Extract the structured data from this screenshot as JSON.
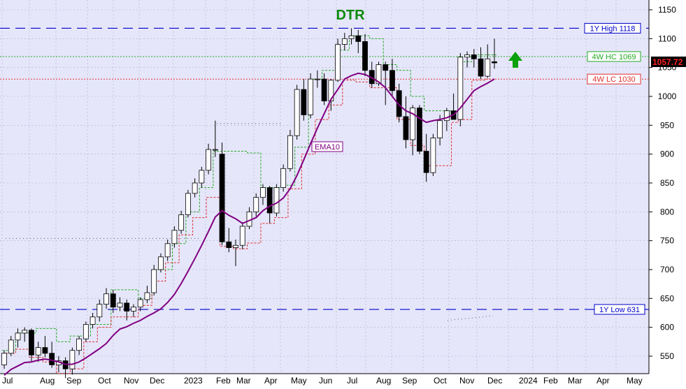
{
  "chart_data": {
    "type": "candlestick",
    "title": "DTR",
    "colors": {
      "background": "#e6e6fa",
      "title": "#0a8a0a",
      "ema": "#800080",
      "high_low_lines": "#0000cc",
      "hc_line": "#22aa22",
      "lc_line": "#e03030",
      "up_arrow": "#0aa00a",
      "last_price_bg": "#000000",
      "last_price_text": "#ff2020"
    },
    "ylim": [
      520,
      1160
    ],
    "yticks": [
      550,
      600,
      650,
      700,
      750,
      800,
      850,
      900,
      950,
      1000,
      1050,
      1100,
      1150
    ],
    "x_labels": [
      "Jul",
      "Aug",
      "Sep",
      "Oct",
      "Nov",
      "Dec",
      "2023",
      "Feb",
      "Mar",
      "Apr",
      "May",
      "Jun",
      "Jul",
      "Aug",
      "Sep",
      "Oct",
      "Nov",
      "Dec",
      "2024",
      "Feb",
      "Mar",
      "Apr",
      "May"
    ],
    "reference_lines": [
      {
        "label": "1Y High 1118",
        "value": 1118,
        "style": "dash-blue"
      },
      {
        "label": "4W HC 1069",
        "value": 1069,
        "style": "dot-green"
      },
      {
        "label": "4W LC 1030",
        "value": 1030,
        "style": "dot-red"
      },
      {
        "label": "1Y Low 631",
        "value": 631,
        "style": "dash-blue"
      }
    ],
    "last_price_label": "1057.72",
    "series_label": "EMA10",
    "candles": [
      [
        535,
        560,
        528,
        555
      ],
      [
        555,
        585,
        550,
        578
      ],
      [
        578,
        598,
        565,
        590
      ],
      [
        590,
        600,
        575,
        595
      ],
      [
        595,
        598,
        540,
        552
      ],
      [
        552,
        575,
        540,
        565
      ],
      [
        565,
        585,
        548,
        555
      ],
      [
        555,
        575,
        530,
        535
      ],
      [
        535,
        550,
        522,
        542
      ],
      [
        542,
        548,
        512,
        528
      ],
      [
        528,
        565,
        518,
        560
      ],
      [
        560,
        585,
        552,
        580
      ],
      [
        580,
        610,
        575,
        605
      ],
      [
        605,
        625,
        598,
        618
      ],
      [
        618,
        648,
        610,
        640
      ],
      [
        640,
        668,
        632,
        658
      ],
      [
        658,
        665,
        625,
        635
      ],
      [
        635,
        652,
        628,
        642
      ],
      [
        642,
        648,
        612,
        628
      ],
      [
        628,
        640,
        618,
        635
      ],
      [
        635,
        652,
        628,
        648
      ],
      [
        648,
        672,
        642,
        660
      ],
      [
        660,
        708,
        655,
        700
      ],
      [
        700,
        728,
        695,
        722
      ],
      [
        722,
        752,
        715,
        745
      ],
      [
        745,
        775,
        738,
        768
      ],
      [
        768,
        802,
        762,
        795
      ],
      [
        795,
        838,
        790,
        832
      ],
      [
        832,
        858,
        825,
        850
      ],
      [
        850,
        878,
        842,
        872
      ],
      [
        872,
        918,
        865,
        908
      ],
      [
        908,
        958,
        895,
        908
      ],
      [
        900,
        920,
        742,
        748
      ],
      [
        748,
        772,
        730,
        738
      ],
      [
        738,
        752,
        706,
        742
      ],
      [
        742,
        782,
        735,
        775
      ],
      [
        775,
        808,
        770,
        800
      ],
      [
        800,
        832,
        792,
        825
      ],
      [
        825,
        848,
        812,
        842
      ],
      [
        842,
        845,
        780,
        798
      ],
      [
        798,
        848,
        792,
        842
      ],
      [
        842,
        882,
        835,
        875
      ],
      [
        875,
        942,
        870,
        932
      ],
      [
        932,
        1020,
        925,
        1012
      ],
      [
        1012,
        1030,
        958,
        968
      ],
      [
        968,
        1040,
        962,
        1030
      ],
      [
        1030,
        1045,
        1015,
        1030
      ],
      [
        1030,
        1040,
        985,
        992
      ],
      [
        992,
        1030,
        975,
        1028
      ],
      [
        1028,
        1100,
        1025,
        1090
      ],
      [
        1090,
        1110,
        1080,
        1100
      ],
      [
        1100,
        1118,
        1090,
        1105
      ],
      [
        1105,
        1115,
        1075,
        1095
      ],
      [
        1095,
        1108,
        1035,
        1045
      ],
      [
        1045,
        1060,
        1015,
        1022
      ],
      [
        1022,
        1060,
        1018,
        1055
      ],
      [
        1055,
        1060,
        985,
        1045
      ],
      [
        1045,
        1065,
        1000,
        1010
      ],
      [
        1010,
        1022,
        955,
        965
      ],
      [
        965,
        1000,
        910,
        925
      ],
      [
        925,
        985,
        898,
        980
      ],
      [
        980,
        985,
        900,
        905
      ],
      [
        905,
        935,
        852,
        868
      ],
      [
        868,
        935,
        862,
        928
      ],
      [
        928,
        968,
        915,
        958
      ],
      [
        958,
        980,
        940,
        975
      ],
      [
        975,
        1005,
        960,
        960
      ],
      [
        960,
        1075,
        948,
        1068
      ],
      [
        1068,
        1078,
        1050,
        1072
      ],
      [
        1072,
        1082,
        1050,
        1065
      ],
      [
        1065,
        1085,
        1030,
        1035
      ],
      [
        1035,
        1090,
        1032,
        1065
      ],
      [
        1060,
        1100,
        1048,
        1058
      ]
    ],
    "ema10": [
      517,
      527,
      533,
      539,
      540,
      543,
      545,
      543,
      540,
      536,
      536,
      540,
      547,
      555,
      563,
      572,
      586,
      597,
      601,
      607,
      612,
      619,
      625,
      632,
      643,
      657,
      676,
      697,
      719,
      742,
      766,
      791,
      802,
      794,
      788,
      780,
      785,
      790,
      802,
      810,
      815,
      824,
      840,
      863,
      890,
      918,
      945,
      970,
      995,
      1012,
      1030,
      1036,
      1040,
      1038,
      1032,
      1025,
      1015,
      1000,
      985,
      975,
      970,
      962,
      955,
      958,
      960,
      963,
      968,
      980,
      995,
      1010,
      1017,
      1023,
      1030
    ],
    "hc_steps": [
      [
        0,
        560
      ],
      [
        2,
        590
      ],
      [
        5,
        598
      ],
      [
        8,
        575
      ],
      [
        10,
        585
      ],
      [
        13,
        605
      ],
      [
        16,
        665
      ],
      [
        20,
        650
      ],
      [
        22,
        700
      ],
      [
        25,
        745
      ],
      [
        27,
        800
      ],
      [
        29,
        842
      ],
      [
        31,
        905
      ],
      [
        33,
        905
      ],
      [
        36,
        902
      ],
      [
        38,
        842
      ],
      [
        41,
        846
      ],
      [
        43,
        912
      ],
      [
        45,
        1030
      ],
      [
        47,
        1045
      ],
      [
        49,
        1080
      ],
      [
        51,
        1105
      ],
      [
        54,
        1100
      ],
      [
        56,
        1055
      ],
      [
        58,
        1045
      ],
      [
        60,
        1000
      ],
      [
        62,
        975
      ],
      [
        65,
        975
      ],
      [
        67,
        1060
      ],
      [
        69,
        1072
      ]
    ],
    "lc_steps": [
      [
        0,
        555
      ],
      [
        2,
        562
      ],
      [
        4,
        548
      ],
      [
        6,
        540
      ],
      [
        8,
        520
      ],
      [
        10,
        528
      ],
      [
        12,
        575
      ],
      [
        14,
        600
      ],
      [
        16,
        618
      ],
      [
        20,
        638
      ],
      [
        22,
        680
      ],
      [
        24,
        712
      ],
      [
        26,
        760
      ],
      [
        28,
        790
      ],
      [
        30,
        825
      ],
      [
        32,
        740
      ],
      [
        34,
        736
      ],
      [
        36,
        746
      ],
      [
        38,
        780
      ],
      [
        40,
        790
      ],
      [
        42,
        840
      ],
      [
        44,
        900
      ],
      [
        46,
        960
      ],
      [
        48,
        985
      ],
      [
        50,
        1028
      ],
      [
        52,
        1025
      ],
      [
        54,
        1015
      ],
      [
        56,
        1015
      ],
      [
        58,
        960
      ],
      [
        60,
        915
      ],
      [
        62,
        880
      ],
      [
        64,
        880
      ],
      [
        66,
        955
      ],
      [
        67,
        960
      ],
      [
        69,
        1028
      ],
      [
        71,
        1030
      ]
    ]
  }
}
